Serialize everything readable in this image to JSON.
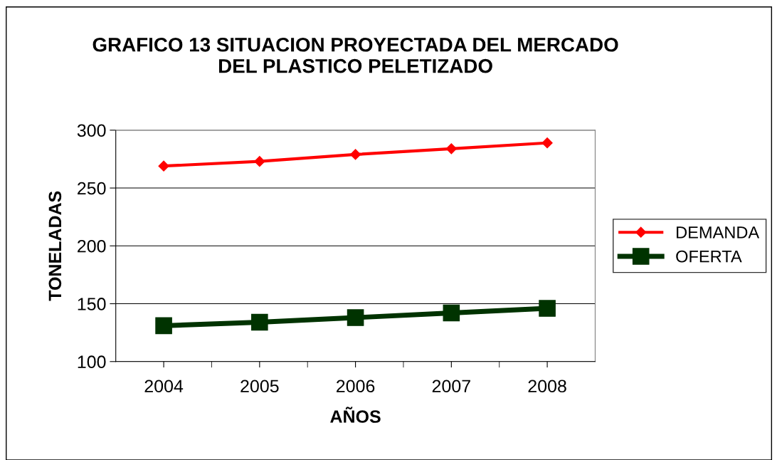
{
  "chart_data": {
    "type": "line",
    "title": "GRAFICO 13 SITUACION PROYECTADA DEL MERCADO\nDEL PLASTICO PELETIZADO",
    "xlabel": "AÑOS",
    "ylabel": "TONELADAS",
    "categories": [
      "2004",
      "2005",
      "2006",
      "2007",
      "2008"
    ],
    "series": [
      {
        "name": "DEMANDA",
        "color": "#ff0000",
        "marker": "diamond",
        "values": [
          269,
          273,
          279,
          284,
          289
        ]
      },
      {
        "name": "OFERTA",
        "color": "#003300",
        "marker": "square",
        "values": [
          131,
          134,
          138,
          142,
          146
        ]
      }
    ],
    "ylim": [
      100,
      300
    ],
    "yticks": [
      100,
      150,
      200,
      250,
      300
    ],
    "grid": "y",
    "legend": "right",
    "line_style": "solid"
  }
}
